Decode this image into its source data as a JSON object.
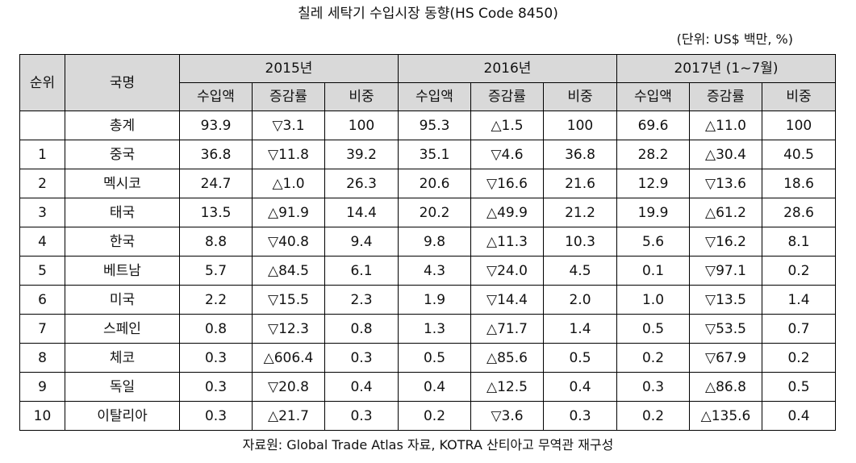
{
  "title": "칠레 세탁기 수입시장 동향(HS Code 8450)",
  "unit": "(단위: US$ 백만, %)",
  "header": {
    "rank": "순위",
    "country": "국명",
    "years": [
      "2015년",
      "2016년",
      "2017년 (1~7월)"
    ],
    "sub": [
      "수입액",
      "증감률",
      "비중"
    ]
  },
  "rows": [
    {
      "rank": "",
      "country": "총계",
      "cells": [
        "93.9",
        "▽3.1",
        "100",
        "95.3",
        "△1.5",
        "100",
        "69.6",
        "△11.0",
        "100"
      ]
    },
    {
      "rank": "1",
      "country": "중국",
      "cells": [
        "36.8",
        "▽11.8",
        "39.2",
        "35.1",
        "▽4.6",
        "36.8",
        "28.2",
        "△30.4",
        "40.5"
      ]
    },
    {
      "rank": "2",
      "country": "멕시코",
      "cells": [
        "24.7",
        "△1.0",
        "26.3",
        "20.6",
        "▽16.6",
        "21.6",
        "12.9",
        "▽13.6",
        "18.6"
      ]
    },
    {
      "rank": "3",
      "country": "태국",
      "cells": [
        "13.5",
        "△91.9",
        "14.4",
        "20.2",
        "△49.9",
        "21.2",
        "19.9",
        "△61.2",
        "28.6"
      ]
    },
    {
      "rank": "4",
      "country": "한국",
      "cells": [
        "8.8",
        "▽40.8",
        "9.4",
        "9.8",
        "△11.3",
        "10.3",
        "5.6",
        "▽16.2",
        "8.1"
      ]
    },
    {
      "rank": "5",
      "country": "베트남",
      "cells": [
        "5.7",
        "△84.5",
        "6.1",
        "4.3",
        "▽24.0",
        "4.5",
        "0.1",
        "▽97.1",
        "0.2"
      ]
    },
    {
      "rank": "6",
      "country": "미국",
      "cells": [
        "2.2",
        "▽15.5",
        "2.3",
        "1.9",
        "▽14.4",
        "2.0",
        "1.0",
        "▽13.5",
        "1.4"
      ]
    },
    {
      "rank": "7",
      "country": "스페인",
      "cells": [
        "0.8",
        "▽12.3",
        "0.8",
        "1.3",
        "△71.7",
        "1.4",
        "0.5",
        "▽53.5",
        "0.7"
      ]
    },
    {
      "rank": "8",
      "country": "체코",
      "cells": [
        "0.3",
        "△606.4",
        "0.3",
        "0.5",
        "△85.6",
        "0.5",
        "0.2",
        "▽67.9",
        "0.2"
      ]
    },
    {
      "rank": "9",
      "country": "독일",
      "cells": [
        "0.3",
        "▽20.8",
        "0.4",
        "0.4",
        "△12.5",
        "0.4",
        "0.3",
        "△86.8",
        "0.5"
      ]
    },
    {
      "rank": "10",
      "country": "이탈리아",
      "cells": [
        "0.3",
        "△21.7",
        "0.3",
        "0.2",
        "▽3.6",
        "0.3",
        "0.2",
        "△135.6",
        "0.4"
      ]
    }
  ],
  "source": "자료원: Global Trade Atlas 자료, KOTRA 산티아고 무역관 재구성"
}
